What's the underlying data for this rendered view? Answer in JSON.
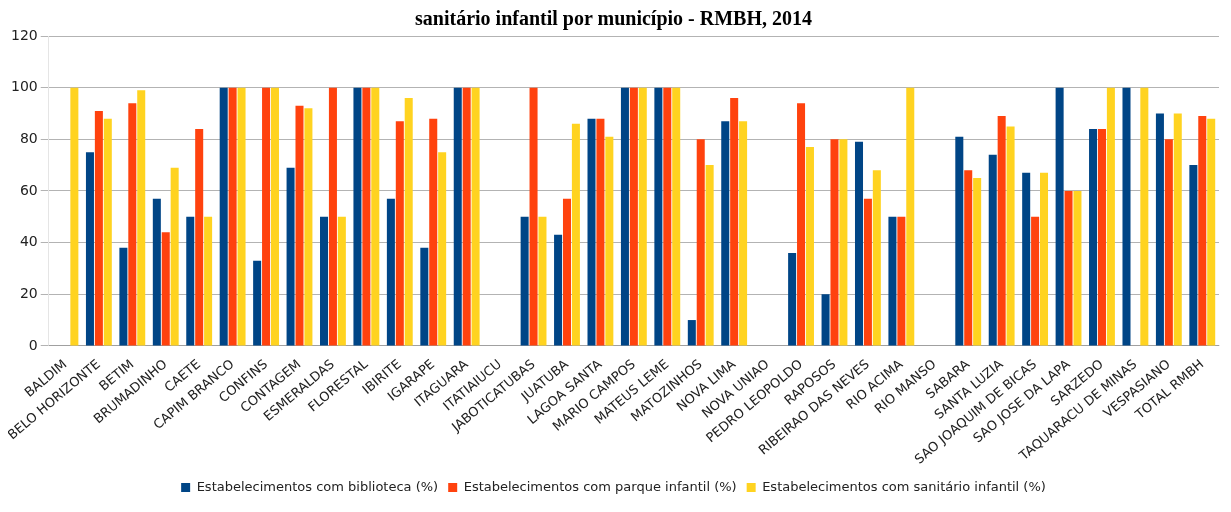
{
  "chart_data": {
    "type": "bar",
    "title": "sanitário infantil por município - RMBH, 2014",
    "categories": [
      "BALDIM",
      "BELO HORIZONTE",
      "BETIM",
      "BRUMADINHO",
      "CAETE",
      "CAPIM BRANCO",
      "CONFINS",
      "CONTAGEM",
      "ESMERALDAS",
      "FLORESTAL",
      "IBIRITE",
      "IGARAPE",
      "ITAGUARA",
      "ITATIAIUCU",
      "JABOTICATUBAS",
      "JUATUBA",
      "LAGOA SANTA",
      "MARIO CAMPOS",
      "MATEUS LEME",
      "MATOZINHOS",
      "NOVA LIMA",
      "NOVA UNIAO",
      "PEDRO LEOPOLDO",
      "RAPOSOS",
      "RIBEIRAO DAS NEVES",
      "RIO ACIMA",
      "RIO MANSO",
      "SABARA",
      "SANTA LUZIA",
      "SAO JOAQUIM DE BICAS",
      "SAO JOSE DA LAPA",
      "SARZEDO",
      "TAQUARACU DE MINAS",
      "VESPASIANO",
      "TOTAL RMBH"
    ],
    "series": [
      {
        "name": "Estabelecimentos com biblioteca (%)",
        "color": "#004586",
        "values": [
          0,
          75,
          38,
          57,
          50,
          100,
          33,
          69,
          50,
          100,
          57,
          38,
          100,
          0,
          50,
          43,
          88,
          100,
          100,
          10,
          87,
          0,
          36,
          20,
          79,
          50,
          0,
          81,
          74,
          67,
          100,
          84,
          100,
          90,
          70
        ]
      },
      {
        "name": "Estabelecimentos com parque infantil (%)",
        "color": "#ff420e",
        "values": [
          0,
          91,
          94,
          44,
          84,
          100,
          100,
          93,
          100,
          100,
          87,
          88,
          100,
          0,
          100,
          57,
          88,
          100,
          100,
          80,
          96,
          0,
          94,
          80,
          57,
          50,
          0,
          68,
          89,
          50,
          60,
          84,
          0,
          80,
          89
        ]
      },
      {
        "name": "Estabelecimentos com sanitário infantil (%)",
        "color": "#ffd320",
        "values": [
          100,
          88,
          99,
          69,
          50,
          100,
          100,
          92,
          50,
          100,
          96,
          75,
          100,
          0,
          50,
          86,
          81,
          100,
          100,
          70,
          87,
          0,
          77,
          80,
          68,
          100,
          0,
          65,
          85,
          67,
          60,
          100,
          100,
          90,
          88
        ]
      }
    ],
    "ylim": [
      0,
      120
    ],
    "yticks": [
      0,
      20,
      40,
      60,
      80,
      100,
      120
    ],
    "grid": "y",
    "legend": "bottom"
  }
}
